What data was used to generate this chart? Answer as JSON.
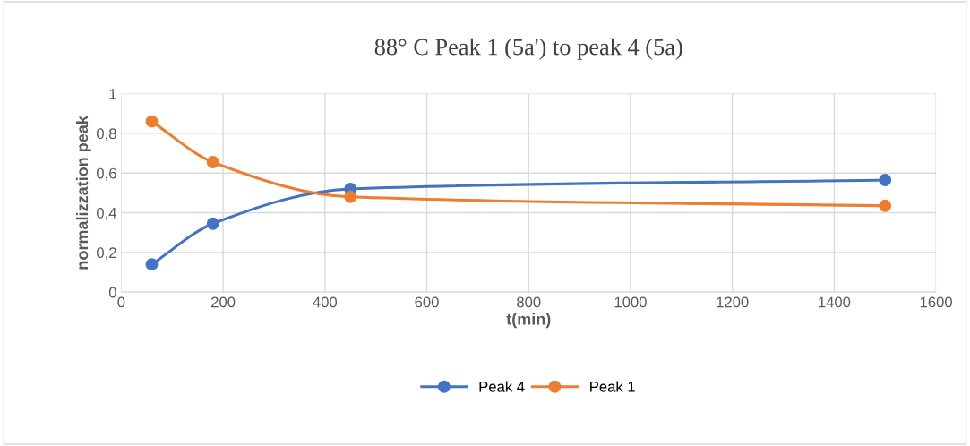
{
  "chart_data": {
    "type": "line",
    "title": "88° C Peak 1 (5a') to peak 4 (5a)",
    "xlabel": "t(min)",
    "ylabel": "normalizzation peak",
    "x": [
      60,
      180,
      450,
      1500
    ],
    "series": [
      {
        "name": "Peak 4",
        "color": "#4472c4",
        "values": [
          0.14,
          0.345,
          0.52,
          0.565
        ]
      },
      {
        "name": "Peak 1",
        "color": "#ed7d31",
        "values": [
          0.86,
          0.655,
          0.48,
          0.435
        ]
      }
    ],
    "xlim": [
      0,
      1600
    ],
    "xticks": [
      0,
      200,
      400,
      600,
      800,
      1000,
      1200,
      1400,
      1600
    ],
    "ylim": [
      0,
      1
    ],
    "yticks": [
      0,
      {
        "value": 0.2,
        "label": "0,2"
      },
      {
        "value": 0.4,
        "label": "0,4"
      },
      {
        "value": 0.6,
        "label": "0,6"
      },
      {
        "value": 0.8,
        "label": "0,8"
      },
      1
    ],
    "grid": true,
    "legend": "bottom",
    "marker": "circle",
    "line_style": "solid"
  }
}
